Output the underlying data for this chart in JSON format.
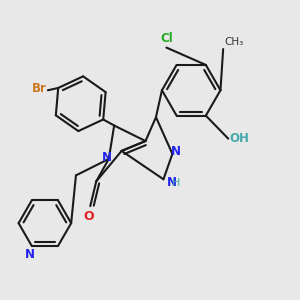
{
  "bg": "#e8e8e8",
  "figsize": [
    3.0,
    3.0
  ],
  "dpi": 100,
  "lw": 1.5,
  "colors": {
    "black": "#1a1a1a",
    "Br": "#cc7722",
    "Cl": "#22aa22",
    "N": "#2222ee",
    "NH": "#2222ee",
    "H": "#44aaaa",
    "O": "#dd2222",
    "OH": "#44aaaa",
    "CH3": "#333333"
  }
}
